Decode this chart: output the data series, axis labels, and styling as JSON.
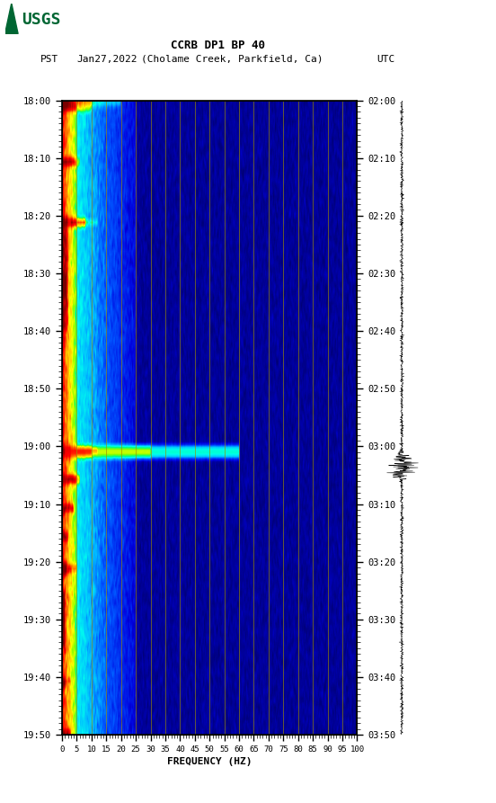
{
  "title_line1": "CCRB DP1 BP 40",
  "title_line2_pst": "PST",
  "title_line2_date": "Jan27,2022",
  "title_line2_loc": "(Cholame Creek, Parkfield, Ca)",
  "title_line2_utc": "UTC",
  "xlabel": "FREQUENCY (HZ)",
  "freq_min": 0,
  "freq_max": 100,
  "freq_ticks": [
    0,
    5,
    10,
    15,
    20,
    25,
    30,
    35,
    40,
    45,
    50,
    55,
    60,
    65,
    70,
    75,
    80,
    85,
    90,
    95,
    100
  ],
  "time_ticks_pst": [
    "18:00",
    "18:10",
    "18:20",
    "18:30",
    "18:40",
    "18:50",
    "19:00",
    "19:10",
    "19:20",
    "19:30",
    "19:40",
    "19:50"
  ],
  "time_ticks_utc": [
    "02:00",
    "02:10",
    "02:20",
    "02:30",
    "02:40",
    "02:50",
    "03:00",
    "03:10",
    "03:20",
    "03:30",
    "03:40",
    "03:50"
  ],
  "n_time": 220,
  "n_freq": 500,
  "background_color": "#ffffff",
  "vline_color": "#9B8C00",
  "vline_freqs": [
    5,
    10,
    15,
    20,
    25,
    30,
    35,
    40,
    45,
    50,
    55,
    60,
    65,
    70,
    75,
    80,
    85,
    90,
    95,
    100
  ],
  "fig_width": 5.52,
  "fig_height": 8.93,
  "usgs_color": "#006633"
}
